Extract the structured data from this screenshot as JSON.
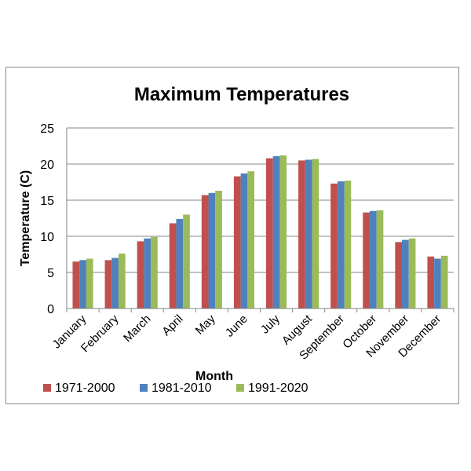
{
  "chart_data": {
    "type": "bar",
    "title": "Maximum Temperatures",
    "xlabel": "Month",
    "ylabel": "Temperature (C)",
    "ylim": [
      0,
      25
    ],
    "yticks": [
      0,
      5,
      10,
      15,
      20,
      25
    ],
    "grid": true,
    "legend_position": "bottom",
    "categories": [
      "January",
      "February",
      "March",
      "April",
      "May",
      "June",
      "July",
      "August",
      "September",
      "October",
      "November",
      "December"
    ],
    "series": [
      {
        "name": "1971-2000",
        "color": "#c0504d",
        "values": [
          6.5,
          6.7,
          9.3,
          11.8,
          15.7,
          18.3,
          20.8,
          20.5,
          17.3,
          13.3,
          9.2,
          7.2
        ]
      },
      {
        "name": "1981-2010",
        "color": "#4f81bd",
        "values": [
          6.7,
          7.0,
          9.7,
          12.4,
          16.0,
          18.7,
          21.1,
          20.6,
          17.6,
          13.5,
          9.5,
          6.9
        ]
      },
      {
        "name": "1991-2020",
        "color": "#9bbb59",
        "values": [
          6.9,
          7.6,
          9.9,
          13.0,
          16.3,
          19.0,
          21.2,
          20.7,
          17.7,
          13.6,
          9.7,
          7.3
        ]
      }
    ]
  }
}
